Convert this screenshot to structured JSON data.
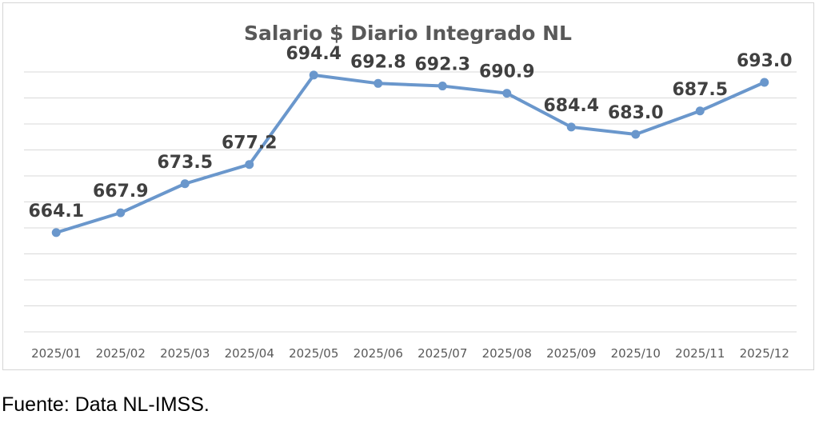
{
  "chart_data": {
    "type": "line",
    "title": "Salario $ Diario Integrado NL",
    "xlabel": "",
    "ylabel": "",
    "categories": [
      "2025/01",
      "2025/02",
      "2025/03",
      "2025/04",
      "2025/05",
      "2025/06",
      "2025/07",
      "2025/08",
      "2025/09",
      "2025/10",
      "2025/11",
      "2025/12"
    ],
    "series": [
      {
        "values": [
          664.1,
          667.9,
          673.5,
          677.2,
          694.4,
          692.8,
          692.3,
          690.9,
          684.4,
          683.0,
          687.5,
          693.0
        ],
        "labels": [
          "664.1",
          "667.9",
          "673.5",
          "677.2",
          "694.4",
          "692.8",
          "692.3",
          "690.9",
          "684.4",
          "683.0",
          "687.5",
          "693.0"
        ],
        "color": "#6a97cc"
      }
    ],
    "ylim": [
      645,
      699
    ],
    "y_gridlines": [
      645,
      650,
      655,
      660,
      665,
      670,
      675,
      680,
      685,
      690,
      695
    ],
    "grid": true,
    "legend": "none",
    "colors": {
      "line": "#6a97cc",
      "gridline": "#d9d9d9",
      "title": "#595959",
      "data_label": "#404040",
      "tick_label": "#595959"
    }
  },
  "source_note": "Fuente: Data NL-IMSS."
}
